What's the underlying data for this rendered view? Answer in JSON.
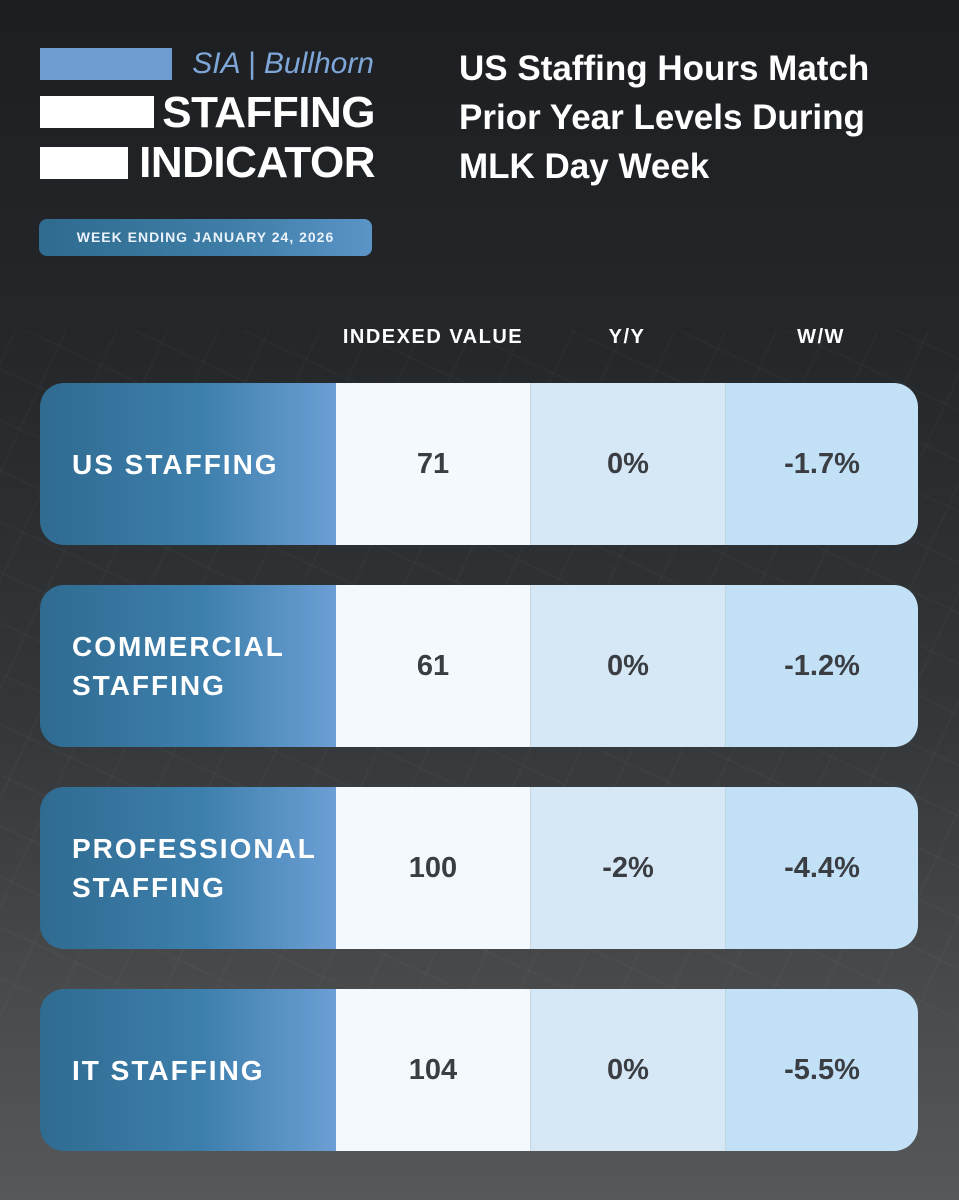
{
  "logo": {
    "subtitle": "SIA | Bullhorn",
    "line1": "STAFFING",
    "line2": "INDICATOR"
  },
  "week_badge": "WEEK ENDING JANUARY 24, 2026",
  "headline": {
    "line1": "US Staffing Hours Match",
    "line2": "Prior Year Levels During",
    "line3": "MLK Day Week"
  },
  "table": {
    "columns": [
      "INDEXED VALUE",
      "Y/Y",
      "W/W"
    ],
    "rows": [
      {
        "label_line1": "US STAFFING",
        "label_line2": "",
        "indexed": "71",
        "yy": "0%",
        "ww": "-1.7%"
      },
      {
        "label_line1": "COMMERCIAL",
        "label_line2": "STAFFING",
        "indexed": "61",
        "yy": "0%",
        "ww": "-1.2%"
      },
      {
        "label_line1": "PROFESSIONAL",
        "label_line2": "STAFFING",
        "indexed": "100",
        "yy": "-2%",
        "ww": "-4.4%"
      },
      {
        "label_line1": "IT STAFFING",
        "label_line2": "",
        "indexed": "104",
        "yy": "0%",
        "ww": "-5.5%"
      }
    ]
  },
  "colors": {
    "accent_blue": "#6e9bd1",
    "label_gradient_start": "#2f6b91",
    "value_text": "#3a3d42"
  }
}
